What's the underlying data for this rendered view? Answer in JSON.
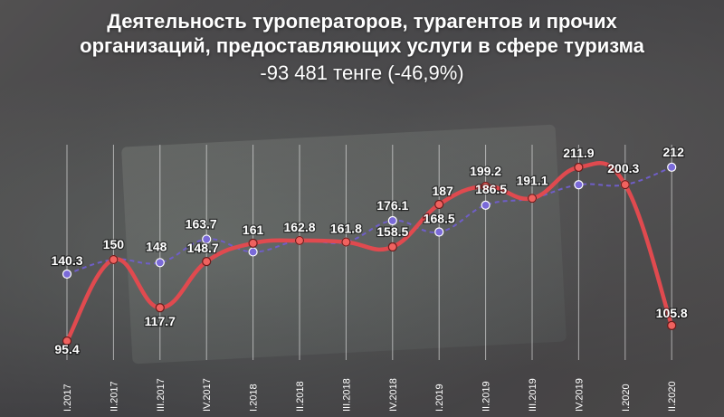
{
  "chart_data": {
    "type": "line",
    "title": "Деятельность туроператоров, турагентов и прочих организаций, предоставляющих услуги в сфере туризма",
    "subtitle": "-93 481 тенге (-46,9%)",
    "categories": [
      "I.2017",
      "II.2017",
      "III.2017",
      "IV.2017",
      "I.2018",
      "II.2018",
      "III.2018",
      "IV.2018",
      "I.2019",
      "II.2019",
      "III.2019",
      "IV.2019",
      "I.2020",
      "II.2020"
    ],
    "series": [
      {
        "values": [
          95.4,
          150,
          117.7,
          148.7,
          161,
          162.8,
          161.8,
          158.5,
          187,
          199.2,
          191.1,
          211.9,
          200.3,
          105.8
        ],
        "color": "#e04a4f"
      },
      {
        "values": [
          140.3,
          150,
          148,
          163.7,
          155.2,
          162.8,
          161.8,
          176.1,
          168.5,
          186.5,
          191.1,
          200.2,
          200.3,
          212
        ],
        "color": "#6f5ec8"
      }
    ],
    "labels": [
      {
        "series": 0,
        "index": 0,
        "text": "95.4"
      },
      {
        "series": 0,
        "index": 2,
        "text": "117.7"
      },
      {
        "series": 0,
        "index": 3,
        "text": "148.7"
      },
      {
        "series": 0,
        "index": 4,
        "text": "161"
      },
      {
        "series": 0,
        "index": 7,
        "text": "158.5"
      },
      {
        "series": 0,
        "index": 8,
        "text": "187"
      },
      {
        "series": 0,
        "index": 9,
        "text": "199.2"
      },
      {
        "series": 0,
        "index": 11,
        "text": "211.9"
      },
      {
        "series": 0,
        "index": 13,
        "text": "105.8"
      },
      {
        "series": 1,
        "index": 0,
        "text": "140.3"
      },
      {
        "series": 1,
        "index": 1,
        "text": "150"
      },
      {
        "series": 1,
        "index": 2,
        "text": "148"
      },
      {
        "series": 1,
        "index": 3,
        "text": "163.7"
      },
      {
        "series": 1,
        "index": 5,
        "text": "162.8"
      },
      {
        "series": 1,
        "index": 6,
        "text": "161.8"
      },
      {
        "series": 1,
        "index": 7,
        "text": "176.1"
      },
      {
        "series": 1,
        "index": 8,
        "text": "168.5"
      },
      {
        "series": 1,
        "index": 9,
        "text": "186.5"
      },
      {
        "series": 1,
        "index": 10,
        "text": "191.1"
      },
      {
        "series": 1,
        "index": 12,
        "text": "200.3"
      },
      {
        "series": 1,
        "index": 13,
        "text": "212"
      }
    ],
    "ylim": [
      90,
      220
    ],
    "grid": "vertical"
  }
}
